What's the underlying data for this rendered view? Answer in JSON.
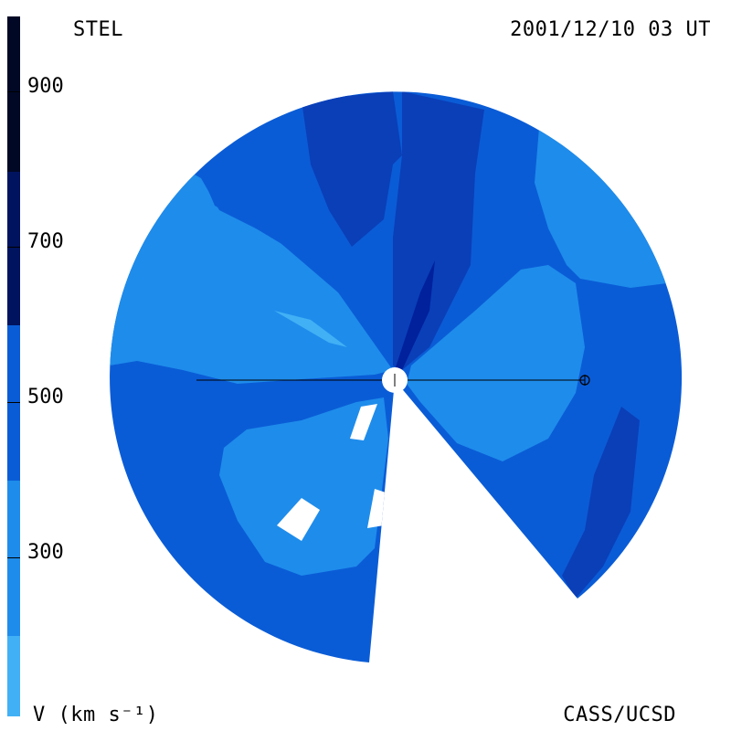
{
  "header": {
    "label": "STEL",
    "timestamp": "2001/12/10 03 UT"
  },
  "footer": {
    "units": "V (km s⁻¹)",
    "credit": "CASS/UCSD"
  },
  "colorbar": {
    "ticks": [
      "900",
      "700",
      "500",
      "300"
    ],
    "colors": [
      "#000826",
      "#001E66",
      "#00209C",
      "#0A3FB8",
      "#0A5CD6",
      "#1E8CEB",
      "#42B0F5",
      "#9AD6FA"
    ]
  },
  "colors": {
    "level_300_400": "#1E8CEB",
    "level_400_500": "#0A5CD6",
    "level_500_600": "#0A3FB8",
    "level_600_700": "#00209C",
    "level_light": "#42B0F5"
  }
}
